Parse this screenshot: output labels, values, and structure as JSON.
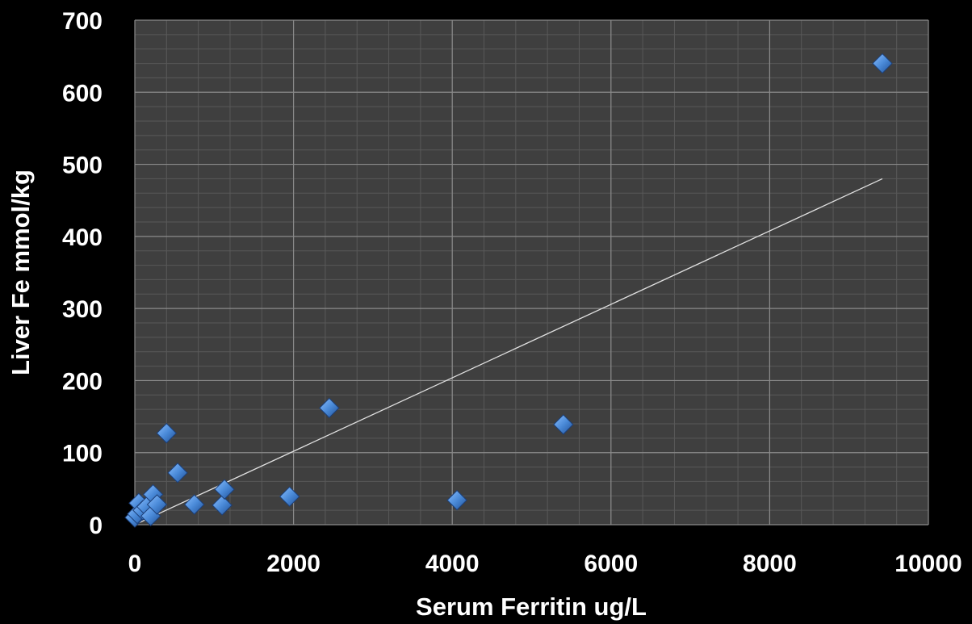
{
  "chart_data": {
    "type": "scatter",
    "title": "",
    "xlabel": "Serum Ferritin ug/L",
    "ylabel": "Liver Fe mmol/kg",
    "xlim": [
      0,
      10000
    ],
    "ylim": [
      0,
      700
    ],
    "xticks": [
      0,
      2000,
      4000,
      6000,
      8000,
      10000
    ],
    "yticks": [
      0,
      100,
      200,
      300,
      400,
      500,
      600,
      700
    ],
    "grid": true,
    "legend": "none",
    "colors": {
      "background": "#000000",
      "plot_area": "#3f3f3f",
      "major_grid": "#8a8a8a",
      "minor_grid": "#595959",
      "marker": "#3f7fd0",
      "trendline": "#e0e0e0",
      "text": "#ffffff"
    },
    "marker": "diamond",
    "points": [
      {
        "x": 0,
        "y": 10
      },
      {
        "x": 30,
        "y": 15
      },
      {
        "x": 50,
        "y": 30
      },
      {
        "x": 100,
        "y": 20
      },
      {
        "x": 150,
        "y": 25
      },
      {
        "x": 200,
        "y": 12
      },
      {
        "x": 230,
        "y": 42
      },
      {
        "x": 280,
        "y": 28
      },
      {
        "x": 400,
        "y": 127
      },
      {
        "x": 540,
        "y": 72
      },
      {
        "x": 750,
        "y": 28
      },
      {
        "x": 1100,
        "y": 27
      },
      {
        "x": 1130,
        "y": 49
      },
      {
        "x": 1950,
        "y": 39
      },
      {
        "x": 2450,
        "y": 162
      },
      {
        "x": 4060,
        "y": 34
      },
      {
        "x": 5400,
        "y": 139
      },
      {
        "x": 9420,
        "y": 640
      }
    ],
    "trendline": {
      "x": [
        0,
        9420
      ],
      "y": [
        0,
        480
      ]
    }
  }
}
